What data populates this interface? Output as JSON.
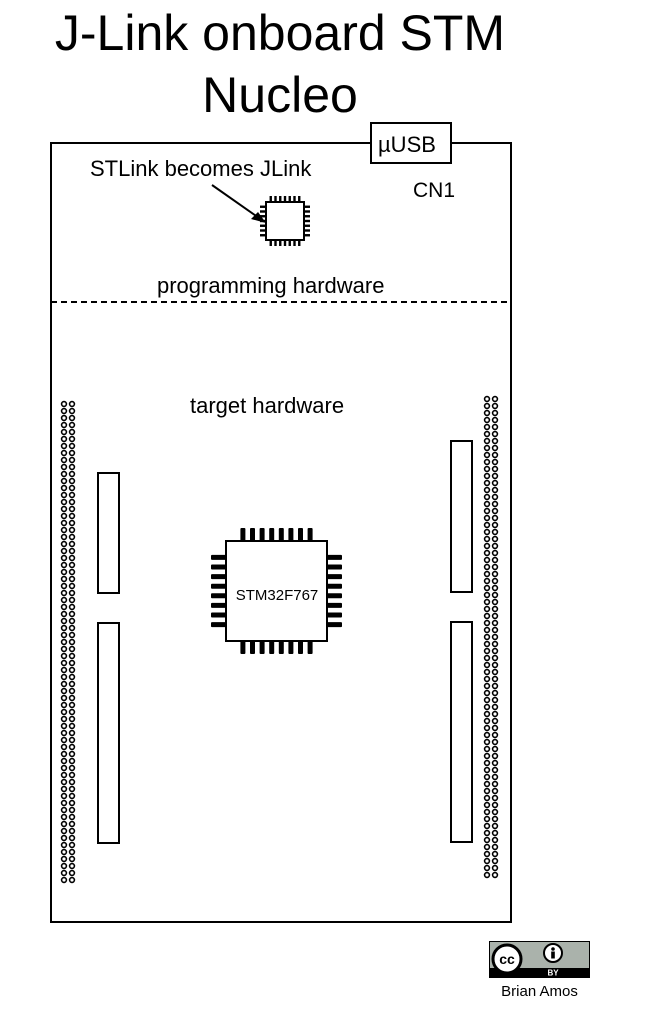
{
  "title": {
    "line1": "J-Link onboard STM",
    "line2": "Nucleo"
  },
  "labels": {
    "usb_connector": "µUSB",
    "connector_ref": "CN1",
    "stlink_note": "STLink becomes JLink",
    "programming_section": "programming hardware",
    "target_section": "target hardware",
    "mcu": "STM32F767"
  },
  "license": {
    "badge_cc": "cc",
    "badge_by": "BY",
    "icon": "creative-commons-by-icon",
    "author": "Brian Amos"
  },
  "colors": {
    "line": "#000000",
    "background": "#ffffff",
    "badge_bg": "#aab2ab"
  }
}
